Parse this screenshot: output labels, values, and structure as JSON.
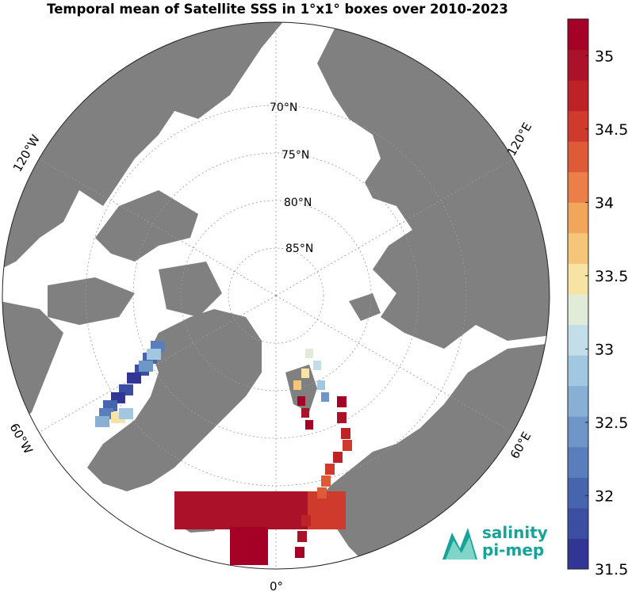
{
  "title": "Temporal mean of Satellite SSS in 1°x1° boxes over 2010-2023",
  "map": {
    "projection": "north-polar-stereographic",
    "land_color": "#808080",
    "ocean_color": "#ffffff",
    "center": "North Pole",
    "lat_labels": [
      "70°N",
      "75°N",
      "80°N",
      "85°N"
    ],
    "lon_labels": [
      "120°W",
      "60°W",
      "0°",
      "60°E",
      "120°E"
    ]
  },
  "colorbar": {
    "min": 31.5,
    "max": 35.25,
    "step": 0.25,
    "ticks": [
      "31.5",
      "32",
      "32.5",
      "33",
      "33.5",
      "34",
      "34.5",
      "35"
    ],
    "colors": [
      "#313695",
      "#3b4ea1",
      "#4764ae",
      "#5a7ebc",
      "#6f96c8",
      "#87b0d4",
      "#a1c8e0",
      "#c2dfe9",
      "#e0ecd8",
      "#f7e3a3",
      "#f5c679",
      "#f2a65c",
      "#eb7f47",
      "#df5a37",
      "#cf3a2d",
      "#bd2227",
      "#ab1129",
      "#a50026"
    ]
  },
  "logo": {
    "line1": "salinity",
    "line2": "pi-mep"
  }
}
